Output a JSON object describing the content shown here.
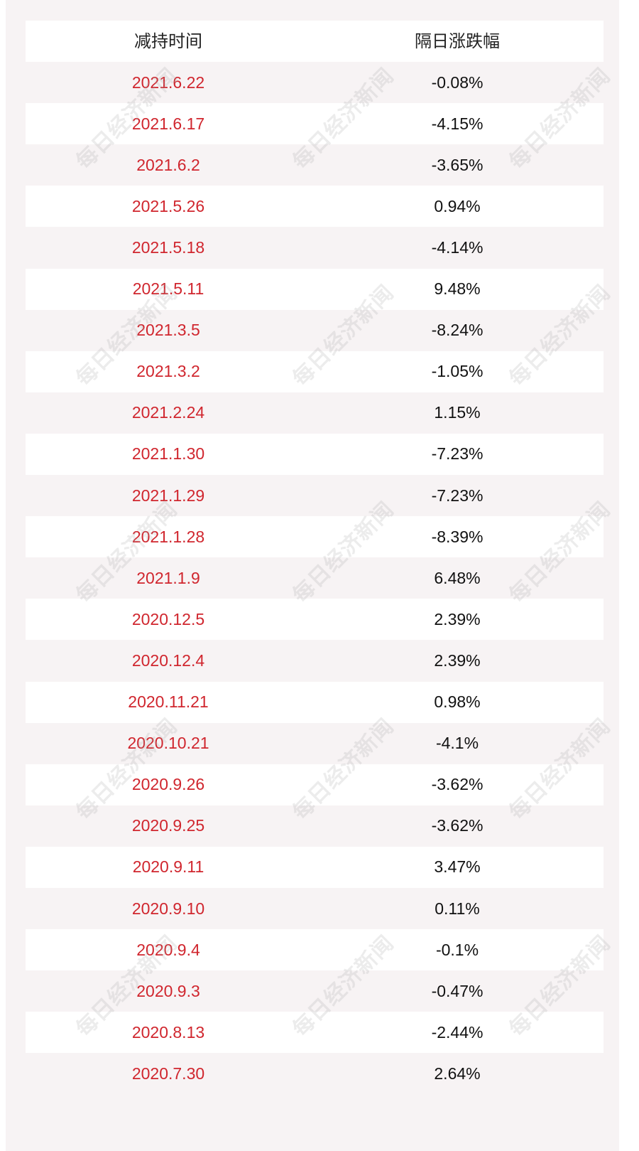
{
  "header": {
    "col1": "减持时间",
    "col2": "隔日涨跌幅"
  },
  "watermark": "每日经济新闻",
  "colors": {
    "date": "#d0262e",
    "pct": "#111111",
    "background": "#f7f3f4"
  },
  "rows": [
    {
      "date": "2021.6.22",
      "pct": "-0.08%"
    },
    {
      "date": "2021.6.17",
      "pct": "-4.15%"
    },
    {
      "date": "2021.6.2",
      "pct": "-3.65%"
    },
    {
      "date": "2021.5.26",
      "pct": "0.94%"
    },
    {
      "date": "2021.5.18",
      "pct": "-4.14%"
    },
    {
      "date": "2021.5.11",
      "pct": "9.48%"
    },
    {
      "date": "2021.3.5",
      "pct": "-8.24%"
    },
    {
      "date": "2021.3.2",
      "pct": "-1.05%"
    },
    {
      "date": "2021.2.24",
      "pct": "1.15%"
    },
    {
      "date": "2021.1.30",
      "pct": "-7.23%"
    },
    {
      "date": "2021.1.29",
      "pct": "-7.23%"
    },
    {
      "date": "2021.1.28",
      "pct": "-8.39%"
    },
    {
      "date": "2021.1.9",
      "pct": "6.48%"
    },
    {
      "date": "2020.12.5",
      "pct": "2.39%"
    },
    {
      "date": "2020.12.4",
      "pct": "2.39%"
    },
    {
      "date": "2020.11.21",
      "pct": "0.98%"
    },
    {
      "date": "2020.10.21",
      "pct": "-4.1%"
    },
    {
      "date": "2020.9.26",
      "pct": "-3.62%"
    },
    {
      "date": "2020.9.25",
      "pct": "-3.62%"
    },
    {
      "date": "2020.9.11",
      "pct": "3.47%"
    },
    {
      "date": "2020.9.10",
      "pct": "0.11%"
    },
    {
      "date": "2020.9.4",
      "pct": "-0.1%"
    },
    {
      "date": "2020.9.3",
      "pct": "-0.47%"
    },
    {
      "date": "2020.8.13",
      "pct": "-2.44%"
    },
    {
      "date": "2020.7.30",
      "pct": "2.64%"
    }
  ]
}
